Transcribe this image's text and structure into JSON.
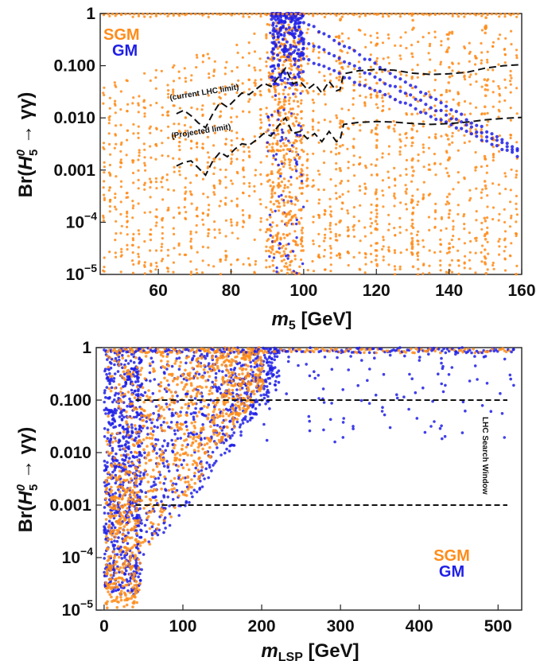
{
  "chart_data": [
    {
      "type": "scatter",
      "yscale": "log",
      "xlim": [
        44,
        160
      ],
      "ylim": [
        1e-05,
        1
      ],
      "x_ticks": [
        60,
        80,
        100,
        120,
        140,
        160
      ],
      "x_tick_labels": [
        "60",
        "80",
        "100",
        "120",
        "140",
        "160"
      ],
      "y_ticks": [
        1,
        0.1,
        0.01,
        0.001,
        0.0001,
        1e-05
      ],
      "y_tick_labels": [
        {
          "base": "1",
          "exp": ""
        },
        {
          "base": "0.100",
          "exp": ""
        },
        {
          "base": "0.010",
          "exp": ""
        },
        {
          "base": "0.001",
          "exp": ""
        },
        {
          "base": "10",
          "exp": "−4"
        },
        {
          "base": "10",
          "exp": "−5"
        }
      ],
      "xlabel": {
        "main": "m",
        "sub": "5",
        "unit": " [GeV]"
      },
      "ylabel": {
        "pre": "Br(",
        "H": "H",
        "sup": "0",
        "sub": "5",
        "post": " → γγ)"
      },
      "legend": {
        "position": "top-left",
        "entries": [
          {
            "name": "SGM",
            "color": "#ff8c1a"
          },
          {
            "name": "GM",
            "color": "#1f1fe6"
          }
        ]
      },
      "series": [
        {
          "name": "SGM",
          "color": "#ff8c1a",
          "shape": "vertical bands at each scanned m5 from 45 to 160 GeV, dense at 90–100 GeV"
        },
        {
          "name": "GM",
          "color": "#1f1fe6",
          "shape": "dense column at 90–100 GeV near 1; descending bands from 100 GeV down to ~0.001 at 160 GeV"
        }
      ],
      "limit_curves": [
        {
          "name": "current LHC limit",
          "label": "(current LHC limit)",
          "style": "dashed",
          "points": [
            [
              65,
              0.012
            ],
            [
              67,
              0.014
            ],
            [
              69,
              0.011
            ],
            [
              71,
              0.008
            ],
            [
              73,
              0.0065
            ],
            [
              75,
              0.012
            ],
            [
              77,
              0.02
            ],
            [
              79,
              0.016
            ],
            [
              81,
              0.022
            ],
            [
              83,
              0.03
            ],
            [
              85,
              0.028
            ],
            [
              87,
              0.036
            ],
            [
              89,
              0.046
            ],
            [
              91,
              0.04
            ],
            [
              93,
              0.06
            ],
            [
              95,
              0.09
            ],
            [
              97,
              0.045
            ],
            [
              99,
              0.05
            ],
            [
              101,
              0.035
            ],
            [
              103,
              0.045
            ],
            [
              105,
              0.03
            ],
            [
              107,
              0.05
            ],
            [
              109,
              0.033
            ],
            [
              110,
              0.035
            ],
            [
              111,
              0.07
            ],
            [
              115,
              0.08
            ],
            [
              120,
              0.085
            ],
            [
              125,
              0.082
            ],
            [
              130,
              0.072
            ],
            [
              135,
              0.068
            ],
            [
              140,
              0.07
            ],
            [
              145,
              0.075
            ],
            [
              150,
              0.09
            ],
            [
              155,
              0.1
            ],
            [
              160,
              0.105
            ]
          ]
        },
        {
          "name": "Projected limit",
          "label": "(Projected limit)",
          "style": "dashed",
          "points": [
            [
              65,
              0.0012
            ],
            [
              67,
              0.0014
            ],
            [
              69,
              0.0015
            ],
            [
              71,
              0.0011
            ],
            [
              73,
              0.0008
            ],
            [
              75,
              0.0015
            ],
            [
              77,
              0.0022
            ],
            [
              79,
              0.0018
            ],
            [
              81,
              0.0025
            ],
            [
              83,
              0.0032
            ],
            [
              85,
              0.003
            ],
            [
              87,
              0.0038
            ],
            [
              89,
              0.005
            ],
            [
              91,
              0.0045
            ],
            [
              93,
              0.007
            ],
            [
              95,
              0.01
            ],
            [
              97,
              0.005
            ],
            [
              99,
              0.0055
            ],
            [
              101,
              0.004
            ],
            [
              103,
              0.005
            ],
            [
              105,
              0.0035
            ],
            [
              107,
              0.0055
            ],
            [
              109,
              0.0035
            ],
            [
              110,
              0.0038
            ],
            [
              111,
              0.0075
            ],
            [
              115,
              0.0082
            ],
            [
              120,
              0.0085
            ],
            [
              125,
              0.0083
            ],
            [
              130,
              0.0078
            ],
            [
              135,
              0.0075
            ],
            [
              140,
              0.0078
            ],
            [
              145,
              0.0083
            ],
            [
              150,
              0.0092
            ],
            [
              155,
              0.0098
            ],
            [
              160,
              0.0102
            ]
          ]
        }
      ]
    },
    {
      "type": "scatter",
      "yscale": "log",
      "xlim": [
        -10,
        530
      ],
      "ylim": [
        1e-05,
        1
      ],
      "x_ticks": [
        0,
        100,
        200,
        300,
        400,
        500
      ],
      "x_tick_labels": [
        "0",
        "100",
        "200",
        "300",
        "400",
        "500"
      ],
      "y_ticks": [
        1,
        0.1,
        0.01,
        0.001,
        0.0001,
        1e-05
      ],
      "y_tick_labels": [
        {
          "base": "1",
          "exp": ""
        },
        {
          "base": "0.100",
          "exp": ""
        },
        {
          "base": "0.010",
          "exp": ""
        },
        {
          "base": "0.001",
          "exp": ""
        },
        {
          "base": "10",
          "exp": "−4"
        },
        {
          "base": "10",
          "exp": "−5"
        }
      ],
      "xlabel": {
        "main": "m",
        "sub": "LSP",
        "unit": " [GeV]"
      },
      "ylabel": {
        "pre": "Br(",
        "H": "H",
        "sup": "0",
        "sub": "5",
        "post": " → γγ)"
      },
      "legend": {
        "position": "bottom-right",
        "entries": [
          {
            "name": "SGM",
            "color": "#ff8c1a"
          },
          {
            "name": "GM",
            "color": "#1f1fe6"
          }
        ]
      },
      "series": [
        {
          "name": "SGM",
          "color": "#ff8c1a",
          "shape": "dense cloud from m_LSP 0 to ~200 GeV, spanning 1e-5 to 1"
        },
        {
          "name": "GM",
          "color": "#1f1fe6",
          "shape": "dense columns near 0–50 GeV, cloud to ~220 GeV, sparse points to 520 GeV near 0.1–1"
        }
      ],
      "window": {
        "label": "LHC Search Window",
        "y_upper": 0.1,
        "y_lower": 0.001,
        "x_start": 40,
        "style": "dashed"
      }
    }
  ]
}
